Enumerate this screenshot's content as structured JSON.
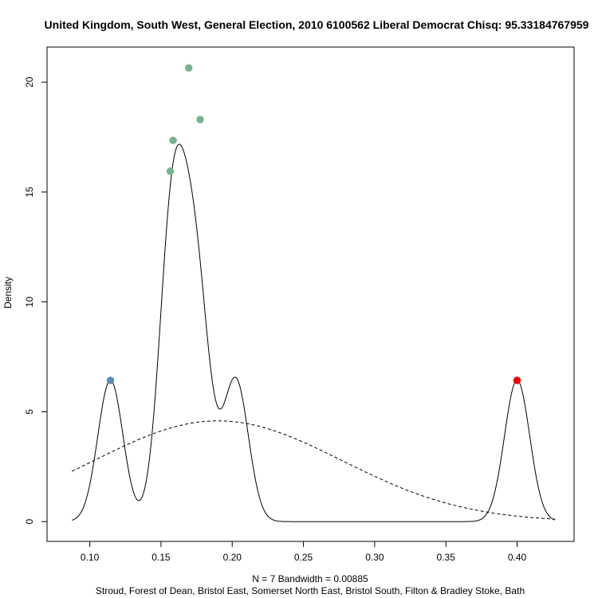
{
  "chart_data": {
    "type": "line",
    "title": "United Kingdom, South West, General Election, 2010 6100562 Liberal Democrat Chisq: 95.33184767959",
    "xlabel_line1": "N = 7   Bandwidth = 0.00885",
    "xlabel_line2": "Stroud, Forest of Dean, Bristol East, Somerset North East, Bristol South, Filton & Bradley Stoke, Bath",
    "ylabel": "Density",
    "xlim": [
      0.07,
      0.44
    ],
    "ylim": [
      -0.9,
      21.6
    ],
    "x_ticks": [
      0.1,
      0.15,
      0.2,
      0.25,
      0.3,
      0.35,
      0.4
    ],
    "x_tick_labels": [
      "0.10",
      "0.15",
      "0.20",
      "0.25",
      "0.30",
      "0.35",
      "0.40"
    ],
    "y_ticks": [
      0,
      5,
      10,
      15,
      20
    ],
    "y_tick_labels": [
      "0",
      "5",
      "10",
      "15",
      "20"
    ],
    "bandwidth": 0.00885,
    "kde_x_range": [
      0.0875,
      0.4265
    ],
    "observations": [
      0.1145,
      0.1565,
      0.1585,
      0.1695,
      0.1775,
      0.2025,
      0.4
    ],
    "points": [
      {
        "x": 0.1145,
        "y": 6.43,
        "color": "#5b8db8"
      },
      {
        "x": 0.1565,
        "y": 15.95,
        "color": "#73b38f"
      },
      {
        "x": 0.1585,
        "y": 17.35,
        "color": "#73b38f"
      },
      {
        "x": 0.1695,
        "y": 20.65,
        "color": "#73b38f"
      },
      {
        "x": 0.1775,
        "y": 18.3,
        "color": "#73b38f"
      },
      {
        "x": 0.4,
        "y": 6.43,
        "color": "#ee0000"
      }
    ],
    "normal_curve": {
      "mean": 0.19,
      "sd": 0.087,
      "style": "dashed"
    },
    "grid": false
  }
}
